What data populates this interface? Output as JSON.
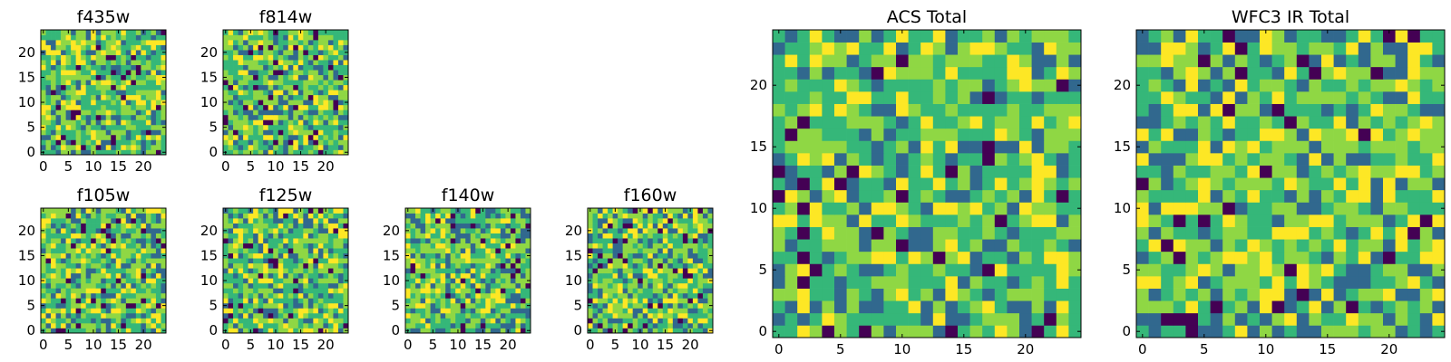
{
  "figure": {
    "colormap": "viridis",
    "colors": [
      "#440154",
      "#31688e",
      "#35b779",
      "#8fd744",
      "#fde725"
    ]
  },
  "chart_data": [
    {
      "type": "heatmap",
      "title": "f435w",
      "grid_size": 25,
      "xlim": [
        -0.5,
        24.5
      ],
      "ylim": [
        -0.5,
        24.5
      ],
      "xticks": [
        0,
        5,
        10,
        15,
        20
      ],
      "yticks": [
        0,
        5,
        10,
        15,
        20
      ],
      "xtick_labels": [
        "0",
        "5",
        "10",
        "15",
        "20"
      ],
      "ytick_labels": [
        "0",
        "5",
        "10",
        "15",
        "20"
      ],
      "seed": 11
    },
    {
      "type": "heatmap",
      "title": "f814w",
      "grid_size": 25,
      "xlim": [
        -0.5,
        24.5
      ],
      "ylim": [
        -0.5,
        24.5
      ],
      "xticks": [
        0,
        5,
        10,
        15,
        20
      ],
      "yticks": [
        0,
        5,
        10,
        15,
        20
      ],
      "xtick_labels": [
        "0",
        "5",
        "10",
        "15",
        "20"
      ],
      "ytick_labels": [
        "0",
        "5",
        "10",
        "15",
        "20"
      ],
      "seed": 23
    },
    {
      "type": "heatmap",
      "title": "f105w",
      "grid_size": 25,
      "xlim": [
        -0.5,
        24.5
      ],
      "ylim": [
        -0.5,
        24.5
      ],
      "xticks": [
        0,
        5,
        10,
        15,
        20
      ],
      "yticks": [
        0,
        5,
        10,
        15,
        20
      ],
      "xtick_labels": [
        "0",
        "5",
        "10",
        "15",
        "20"
      ],
      "ytick_labels": [
        "0",
        "5",
        "10",
        "15",
        "20"
      ],
      "seed": 37
    },
    {
      "type": "heatmap",
      "title": "f125w",
      "grid_size": 25,
      "xlim": [
        -0.5,
        24.5
      ],
      "ylim": [
        -0.5,
        24.5
      ],
      "xticks": [
        0,
        5,
        10,
        15,
        20
      ],
      "yticks": [
        0,
        5,
        10,
        15,
        20
      ],
      "xtick_labels": [
        "0",
        "5",
        "10",
        "15",
        "20"
      ],
      "ytick_labels": [
        "0",
        "5",
        "10",
        "15",
        "20"
      ],
      "seed": 41
    },
    {
      "type": "heatmap",
      "title": "f140w",
      "grid_size": 25,
      "xlim": [
        -0.5,
        24.5
      ],
      "ylim": [
        -0.5,
        24.5
      ],
      "xticks": [
        0,
        5,
        10,
        15,
        20
      ],
      "yticks": [
        0,
        5,
        10,
        15,
        20
      ],
      "xtick_labels": [
        "0",
        "5",
        "10",
        "15",
        "20"
      ],
      "ytick_labels": [
        "0",
        "5",
        "10",
        "15",
        "20"
      ],
      "seed": 53
    },
    {
      "type": "heatmap",
      "title": "f160w",
      "grid_size": 25,
      "xlim": [
        -0.5,
        24.5
      ],
      "ylim": [
        -0.5,
        24.5
      ],
      "xticks": [
        0,
        5,
        10,
        15,
        20
      ],
      "yticks": [
        0,
        5,
        10,
        15,
        20
      ],
      "xtick_labels": [
        "0",
        "5",
        "10",
        "15",
        "20"
      ],
      "ytick_labels": [
        "0",
        "5",
        "10",
        "15",
        "20"
      ],
      "seed": 67
    },
    {
      "type": "heatmap",
      "title": "ACS Total",
      "grid_size": 25,
      "xlim": [
        -0.5,
        24.5
      ],
      "ylim": [
        -0.5,
        24.5
      ],
      "xticks": [
        0,
        5,
        10,
        15,
        20
      ],
      "yticks": [
        0,
        5,
        10,
        15,
        20
      ],
      "xtick_labels": [
        "0",
        "5",
        "10",
        "15",
        "20"
      ],
      "ytick_labels": [
        "0",
        "5",
        "10",
        "15",
        "20"
      ],
      "seed": 79
    },
    {
      "type": "heatmap",
      "title": "WFC3 IR Total",
      "grid_size": 25,
      "xlim": [
        -0.5,
        24.5
      ],
      "ylim": [
        -0.5,
        24.5
      ],
      "xticks": [
        0,
        5,
        10,
        15,
        20
      ],
      "yticks": [
        0,
        5,
        10,
        15,
        20
      ],
      "xtick_labels": [
        "0",
        "5",
        "10",
        "15",
        "20"
      ],
      "ytick_labels": [
        "0",
        "5",
        "10",
        "15",
        "20"
      ],
      "seed": 97
    }
  ]
}
